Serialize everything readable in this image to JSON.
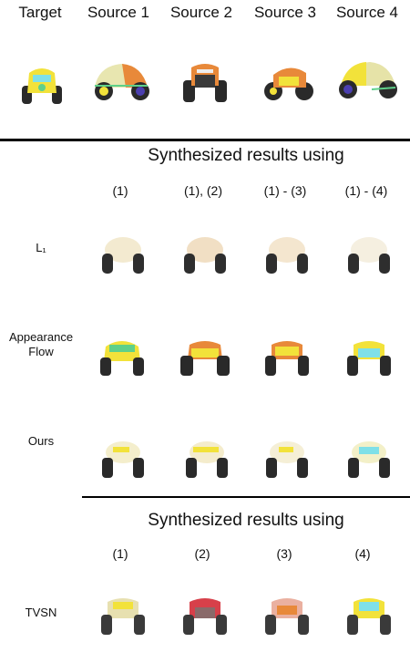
{
  "header": {
    "columns": [
      "Target",
      "Source 1",
      "Source 2",
      "Source 3",
      "Source 4"
    ]
  },
  "section1": {
    "title": "Synthesized results using",
    "columns": [
      "(1)",
      "(1), (2)",
      "(1) - (3)",
      "(1) - (4)"
    ],
    "rows": [
      {
        "label": "L₁"
      },
      {
        "label": "Appearance\nFlow"
      },
      {
        "label": "Ours"
      }
    ]
  },
  "section2": {
    "title": "Synthesized results using",
    "columns": [
      "(1)",
      "(2)",
      "(3)",
      "(4)"
    ],
    "rows": [
      {
        "label": "TVSN"
      }
    ]
  },
  "colors": {
    "rule": "#000000",
    "tire": "#2a2a2a",
    "yellow": "#f2e23a",
    "orange": "#e8893a",
    "green": "#5fd08a",
    "cyan": "#7fe0e8",
    "red": "#d7404a",
    "purple": "#4b3fb0"
  }
}
